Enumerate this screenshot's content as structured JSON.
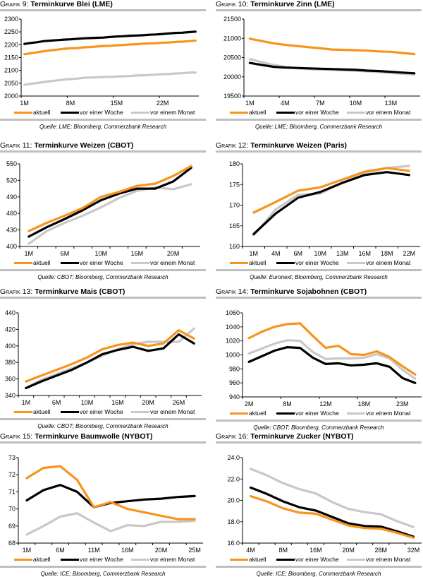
{
  "colors": {
    "aktuell": "#f7941d",
    "woche": "#000000",
    "monat": "#c8c8c8",
    "separator": "#bfbfbf"
  },
  "legend": [
    "aktuell",
    "vor einer Woche",
    "vor einem Monat"
  ],
  "chart_data": [
    {
      "type": "line",
      "prefix": "Grafik 9:",
      "title": "Terminkurve Blei (LME)",
      "source": "Quelle: LME; Bloomberg, Commerzbank Research",
      "ylim": [
        2000,
        2300
      ],
      "yticks": [
        2000,
        2050,
        2100,
        2150,
        2200,
        2250,
        2300
      ],
      "ytick_labels": [
        "2000",
        "2050",
        "2100",
        "2150",
        "2200",
        "2250",
        "2300"
      ],
      "x_count": 27,
      "xtick_labels": [
        {
          "i": 0,
          "label": "1M"
        },
        {
          "i": 7,
          "label": "8M"
        },
        {
          "i": 14,
          "label": "15M"
        },
        {
          "i": 21,
          "label": "22M"
        }
      ],
      "xtick_marks": [
        0,
        7,
        14,
        21
      ],
      "series": [
        {
          "name": "aktuell",
          "key": "aktuell",
          "values": [
            2163,
            2167,
            2171,
            2175,
            2178,
            2181,
            2184,
            2186,
            2187,
            2190,
            2191,
            2193,
            2195,
            2196,
            2198,
            2199,
            2201,
            2202,
            2204,
            2205,
            2206,
            2208,
            2209,
            2211,
            2212,
            2214,
            2216
          ]
        },
        {
          "name": "vor einer Woche",
          "key": "woche",
          "values": [
            2203,
            2207,
            2210,
            2214,
            2216,
            2218,
            2220,
            2221,
            2223,
            2225,
            2226,
            2227,
            2228,
            2230,
            2232,
            2233,
            2235,
            2236,
            2237,
            2239,
            2240,
            2242,
            2244,
            2246,
            2247,
            2249,
            2251
          ]
        },
        {
          "name": "vor einem Monat",
          "key": "monat",
          "values": [
            2044,
            2048,
            2051,
            2055,
            2058,
            2061,
            2064,
            2066,
            2068,
            2071,
            2072,
            2073,
            2074,
            2075,
            2076,
            2077,
            2078,
            2080,
            2081,
            2082,
            2084,
            2085,
            2086,
            2088,
            2089,
            2091,
            2092
          ]
        }
      ]
    },
    {
      "type": "line",
      "prefix": "Grafik 10:",
      "title": "Terminkurve Zinn (LME)",
      "source": "Quelle: LME; Bloomberg, Commerzbank Research",
      "ylim": [
        19500,
        21500
      ],
      "yticks": [
        19500,
        20000,
        20500,
        21000,
        21500
      ],
      "ytick_labels": [
        "19500",
        "20000",
        "20500",
        "21000",
        "21500"
      ],
      "x_count": 15,
      "xtick_labels": [
        {
          "i": 0,
          "label": "1M"
        },
        {
          "i": 3,
          "label": "4M"
        },
        {
          "i": 6,
          "label": "7M"
        },
        {
          "i": 9,
          "label": "10M"
        },
        {
          "i": 12,
          "label": "13M"
        }
      ],
      "xtick_marks": [
        0,
        3,
        6,
        9,
        12
      ],
      "series": [
        {
          "name": "aktuell",
          "key": "aktuell",
          "values": [
            20990,
            20930,
            20870,
            20830,
            20800,
            20770,
            20740,
            20710,
            20700,
            20690,
            20680,
            20660,
            20650,
            20620,
            20590
          ]
        },
        {
          "name": "vor einer Woche",
          "key": "woche",
          "values": [
            20360,
            20310,
            20260,
            20240,
            20230,
            20220,
            20210,
            20200,
            20190,
            20180,
            20160,
            20150,
            20130,
            20110,
            20090
          ]
        },
        {
          "name": "vor einem Monat",
          "key": "monat",
          "values": [
            20460,
            20380,
            20310,
            20260,
            20220,
            20200,
            20190,
            20180,
            20170,
            20160,
            20140,
            20120,
            20100,
            20080,
            20060
          ]
        }
      ]
    },
    {
      "type": "line",
      "prefix": "Grafik 11:",
      "title": "Terminkurve Weizen (CBOT)",
      "source": "Quelle: CBOT; Bloomberg, Commerzbank Research",
      "ylim": [
        400,
        550
      ],
      "yticks": [
        400,
        430,
        460,
        490,
        520,
        550
      ],
      "ytick_labels": [
        "400",
        "430",
        "460",
        "490",
        "520",
        "550"
      ],
      "x_count": 10,
      "xtick_labels": [
        {
          "i": 0,
          "label": "1M"
        },
        {
          "i": 2,
          "label": "6M"
        },
        {
          "i": 4,
          "label": "10M"
        },
        {
          "i": 6,
          "label": "16M"
        },
        {
          "i": 8,
          "label": "20M"
        }
      ],
      "xtick_marks": [
        0,
        1,
        2,
        3,
        4,
        5,
        6,
        7,
        8,
        9
      ],
      "series": [
        {
          "name": "aktuell",
          "key": "aktuell",
          "values": [
            428,
            443,
            456,
            470,
            490,
            499,
            510,
            514,
            528,
            546
          ]
        },
        {
          "name": "vor einer Woche",
          "key": "woche",
          "values": [
            418,
            435,
            450,
            466,
            484,
            496,
            505,
            505,
            518,
            543
          ]
        },
        {
          "name": "vor einem Monat",
          "key": "monat",
          "values": [
            405,
            428,
            443,
            456,
            471,
            488,
            501,
            507,
            504,
            513
          ]
        }
      ]
    },
    {
      "type": "line",
      "prefix": "Grafik 12:",
      "title": "Terminkurve Weizen (Paris)",
      "source": "Quelle: Euronext; Bloomberg, Commerzbank Research",
      "ylim": [
        160,
        180
      ],
      "yticks": [
        160,
        165,
        170,
        175,
        180
      ],
      "ytick_labels": [
        "160",
        "165",
        "170",
        "175",
        "180"
      ],
      "x_count": 8,
      "xtick_labels": [
        {
          "i": 0,
          "label": "1M"
        },
        {
          "i": 1,
          "label": "4M"
        },
        {
          "i": 2,
          "label": "6M"
        },
        {
          "i": 3,
          "label": "10M"
        },
        {
          "i": 4,
          "label": "13M"
        },
        {
          "i": 5,
          "label": "16M"
        },
        {
          "i": 6,
          "label": "18M"
        },
        {
          "i": 7,
          "label": "22M"
        }
      ],
      "xtick_marks": [
        0,
        1,
        2,
        3,
        4,
        5,
        6,
        7
      ],
      "series": [
        {
          "name": "aktuell",
          "key": "aktuell",
          "values": [
            168.2,
            170.8,
            173.5,
            174.3,
            176.2,
            178.1,
            179.0,
            178.3
          ]
        },
        {
          "name": "vor einer Woche",
          "key": "woche",
          "values": [
            163.0,
            168.0,
            171.8,
            173.2,
            175.4,
            177.3,
            178.0,
            177.3
          ]
        },
        {
          "name": "vor einem Monat",
          "key": "monat",
          "values": [
            162.7,
            169.0,
            172.5,
            172.8,
            175.5,
            177.8,
            179.0,
            179.5
          ]
        }
      ]
    },
    {
      "type": "line",
      "prefix": "Grafik 13:",
      "title": "Terminkurve Mais (CBOT)",
      "source": "Quelle: CBOT; Bloomberg, Commerzbank Research",
      "ylim": [
        340,
        440
      ],
      "yticks": [
        340,
        360,
        380,
        400,
        420,
        440
      ],
      "ytick_labels": [
        "340",
        "360",
        "380",
        "400",
        "420",
        "440"
      ],
      "x_count": 12,
      "xtick_labels": [
        {
          "i": 0,
          "label": "1M"
        },
        {
          "i": 2,
          "label": "6M"
        },
        {
          "i": 4,
          "label": "10M"
        },
        {
          "i": 6,
          "label": "16M"
        },
        {
          "i": 8,
          "label": "20M"
        },
        {
          "i": 10,
          "label": "26M"
        }
      ],
      "xtick_marks": [
        0,
        1,
        2,
        3,
        4,
        5,
        6,
        7,
        8,
        9,
        10,
        11
      ],
      "series": [
        {
          "name": "aktuell",
          "key": "aktuell",
          "values": [
            357,
            364,
            371,
            378,
            386,
            396,
            401,
            404,
            400,
            403,
            419,
            409
          ]
        },
        {
          "name": "vor einer Woche",
          "key": "woche",
          "values": [
            349,
            357,
            364,
            371,
            380,
            390,
            395,
            399,
            394,
            397,
            414,
            403
          ]
        },
        {
          "name": "vor einem Monat",
          "key": "monat",
          "values": [
            349,
            359,
            366,
            373,
            380,
            388,
            396,
            402,
            405,
            405,
            405,
            421
          ]
        }
      ]
    },
    {
      "type": "line",
      "prefix": "Grafik 14:",
      "title": "Terminkurve Sojabohnen (CBOT)",
      "source": "Quelle: CBOT; Bloomberg, Commerzbank Research",
      "ylim": [
        940,
        1060
      ],
      "yticks": [
        940,
        960,
        980,
        1000,
        1020,
        1040,
        1060
      ],
      "ytick_labels": [
        "940",
        "960",
        "980",
        "1000",
        "1020",
        "1040",
        "1060"
      ],
      "x_count": 14,
      "xtick_labels": [
        {
          "i": 0,
          "label": "2M"
        },
        {
          "i": 3,
          "label": "8M"
        },
        {
          "i": 6,
          "label": "12M"
        },
        {
          "i": 9,
          "label": "18M"
        },
        {
          "i": 12,
          "label": "23M"
        }
      ],
      "xtick_marks": [
        0,
        3,
        6,
        9,
        12
      ],
      "series": [
        {
          "name": "aktuell",
          "key": "aktuell",
          "values": [
            1024,
            1033,
            1040,
            1044,
            1045,
            1027,
            1010,
            1013,
            1001,
            1000,
            1005,
            997,
            984,
            972
          ]
        },
        {
          "name": "vor einer Woche",
          "key": "woche",
          "values": [
            990,
            998,
            1006,
            1011,
            1010,
            996,
            987,
            988,
            985,
            986,
            988,
            983,
            967,
            960
          ]
        },
        {
          "name": "vor einem Monat",
          "key": "monat",
          "values": [
            1002,
            1009,
            1016,
            1021,
            1020,
            1004,
            994,
            995,
            995,
            996,
            1001,
            995,
            979,
            966
          ]
        }
      ]
    },
    {
      "type": "line",
      "prefix": "Grafik 15:",
      "title": "Terminkurve Baumwolle (NYBOT)",
      "source": "Quelle: ICE; Bloomberg, Commerzbank Research",
      "ylim": [
        68,
        73
      ],
      "yticks": [
        68,
        69,
        70,
        71,
        72,
        73
      ],
      "ytick_labels": [
        "68",
        "69",
        "70",
        "71",
        "72",
        "73"
      ],
      "x_count": 11,
      "xtick_labels": [
        {
          "i": 0,
          "label": "1M"
        },
        {
          "i": 2,
          "label": "6M"
        },
        {
          "i": 4,
          "label": "11M"
        },
        {
          "i": 6,
          "label": "16M"
        },
        {
          "i": 8,
          "label": "20M"
        },
        {
          "i": 10,
          "label": "25M"
        }
      ],
      "xtick_marks": [
        0,
        1,
        2,
        3,
        4,
        5,
        6,
        7,
        8,
        9,
        10
      ],
      "series": [
        {
          "name": "aktuell",
          "key": "aktuell",
          "values": [
            71.8,
            72.4,
            72.5,
            71.7,
            70.1,
            70.4,
            70.0,
            69.8,
            69.6,
            69.4,
            69.4
          ]
        },
        {
          "name": "vor einer Woche",
          "key": "woche",
          "values": [
            70.5,
            71.1,
            71.4,
            71.0,
            70.1,
            70.35,
            70.45,
            70.55,
            70.6,
            70.7,
            70.75
          ]
        },
        {
          "name": "vor einem Monat",
          "key": "monat",
          "values": [
            68.5,
            69.0,
            69.55,
            69.75,
            69.2,
            68.7,
            69.05,
            69.0,
            69.25,
            69.25,
            69.3
          ]
        }
      ]
    },
    {
      "type": "line",
      "prefix": "Grafik 16:",
      "title": "Terminkurve Zucker (NYBOT)",
      "source": "Quelle: ICE; Bloomberg, Commerzbank Research",
      "ylim": [
        16,
        24
      ],
      "yticks": [
        16,
        18,
        20,
        22,
        24
      ],
      "ytick_labels": [
        "16.0",
        "18.0",
        "20.0",
        "22.0",
        "24.0"
      ],
      "x_count": 11,
      "xtick_labels": [
        {
          "i": 0,
          "label": "4M"
        },
        {
          "i": 2,
          "label": "8M"
        },
        {
          "i": 4,
          "label": "16M"
        },
        {
          "i": 6,
          "label": "20M"
        },
        {
          "i": 8,
          "label": "28M"
        },
        {
          "i": 10,
          "label": "32M"
        }
      ],
      "xtick_marks": [
        0,
        1,
        2,
        3,
        4,
        5,
        6,
        7,
        8,
        9,
        10
      ],
      "series": [
        {
          "name": "aktuell",
          "key": "aktuell",
          "values": [
            20.4,
            19.9,
            19.25,
            18.85,
            18.75,
            18.2,
            17.65,
            17.4,
            17.35,
            16.95,
            16.5
          ]
        },
        {
          "name": "vor einer Woche",
          "key": "woche",
          "values": [
            21.2,
            20.6,
            19.9,
            19.35,
            19.05,
            18.45,
            17.85,
            17.6,
            17.55,
            17.1,
            16.6
          ]
        },
        {
          "name": "vor einem Monat",
          "key": "monat",
          "values": [
            22.95,
            22.35,
            21.6,
            21.05,
            20.65,
            19.85,
            19.2,
            18.9,
            18.7,
            18.05,
            17.5
          ]
        }
      ]
    }
  ]
}
